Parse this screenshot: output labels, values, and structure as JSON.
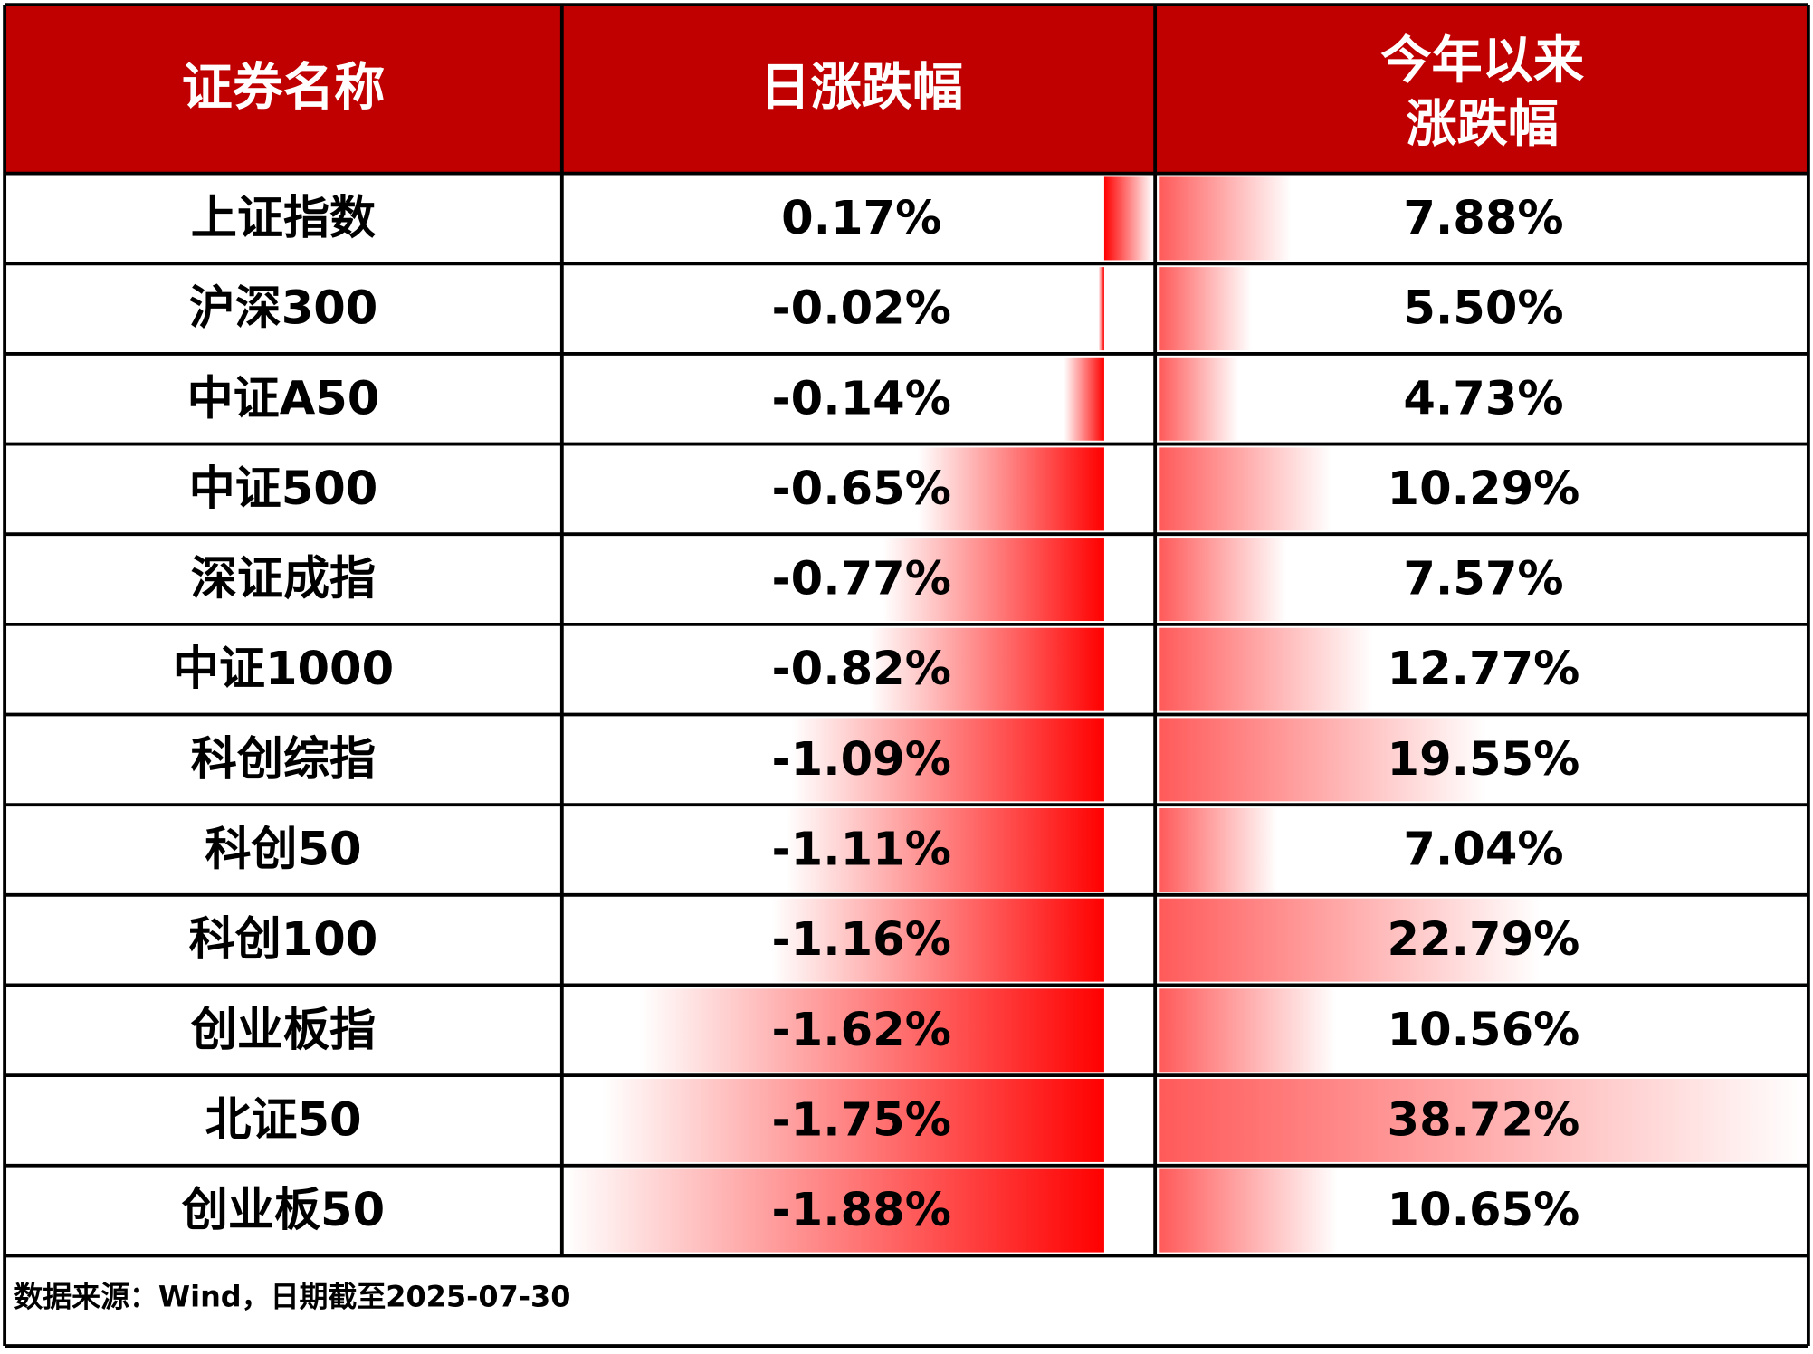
{
  "table": {
    "headers": [
      "证券名称",
      "日涨跌幅",
      [
        "今年以来",
        "涨跌幅"
      ]
    ],
    "names": [
      "上证指数",
      "沪深300",
      "中证A50",
      "中证500",
      "深证成指",
      "中证1000",
      "科创综指",
      "科创50",
      "科创100",
      "创业板指",
      "北证50",
      "创业板50"
    ],
    "daily": {
      "values": [
        0.17,
        -0.02,
        -0.14,
        -0.65,
        -0.77,
        -0.82,
        -1.09,
        -1.11,
        -1.16,
        -1.62,
        -1.75,
        -1.88
      ],
      "value_labels": [
        "0.17%",
        "-0.02%",
        "-0.14%",
        "-0.65%",
        "-0.77%",
        "-0.82%",
        "-1.09%",
        "-1.11%",
        "-1.16%",
        "-1.62%",
        "-1.75%",
        "-1.88%"
      ]
    },
    "ytd": {
      "values": [
        7.88,
        5.5,
        4.73,
        10.29,
        7.57,
        12.77,
        19.55,
        7.04,
        22.79,
        10.56,
        38.72,
        10.65
      ],
      "value_labels": [
        "7.88%",
        "5.50%",
        "4.73%",
        "10.29%",
        "7.57%",
        "12.77%",
        "19.55%",
        "7.04%",
        "22.79%",
        "10.56%",
        "38.72%",
        "10.65%"
      ]
    }
  },
  "footnote": "数据来源：Wind，日期截至2025-07-30"
}
